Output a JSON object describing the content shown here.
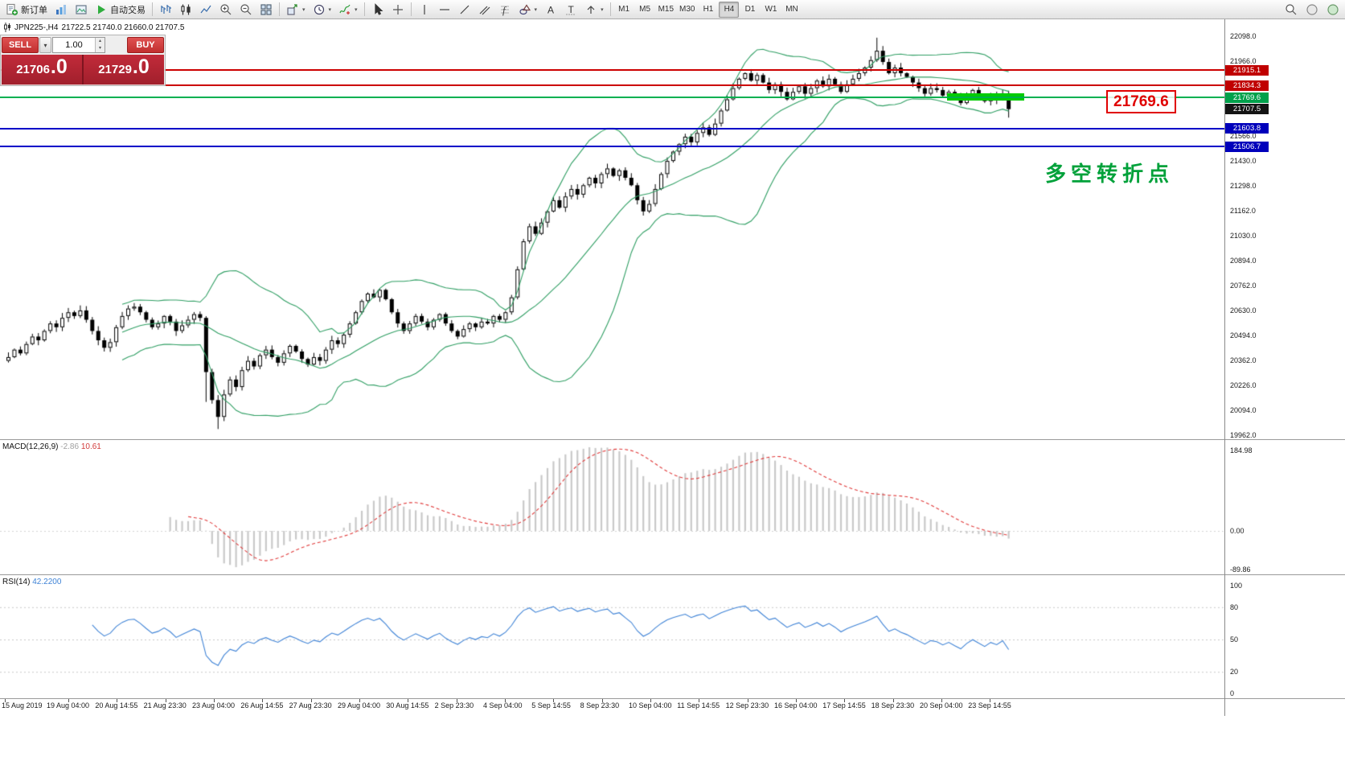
{
  "toolbar": {
    "new_order_label": "新订单",
    "autotrading_label": "自动交易",
    "timeframes": [
      "M1",
      "M5",
      "M15",
      "M30",
      "H1",
      "H4",
      "D1",
      "W1",
      "MN"
    ],
    "active_timeframe": "H4"
  },
  "symbol_header": {
    "title": "JPN225-,H4",
    "ohlc": "21722.5 21740.0 21660.0 21707.5"
  },
  "trade_panel": {
    "sell_label": "SELL",
    "buy_label": "BUY",
    "volume": "1.00",
    "sell_price_main": "21706",
    "sell_price_big": ".0",
    "buy_price_main": "21729",
    "buy_price_big": ".0"
  },
  "callout": {
    "text": "21769.6"
  },
  "annotation": {
    "text": "多空转折点"
  },
  "macd_panel": {
    "name": "MACD(12,26,9)",
    "value_main": "-2.86",
    "value_signal": "10.61",
    "scale": [
      "184.98",
      "0.00",
      "-89.86"
    ]
  },
  "rsi_panel": {
    "name": "RSI(14)",
    "value": "42.2200",
    "scale": [
      "100",
      "80",
      "50",
      "20",
      "0"
    ],
    "levels": [
      80,
      50,
      20
    ]
  },
  "colors": {
    "band": "#2f9e63",
    "level_red": "#cc0000",
    "level_green": "#00b050",
    "level_blue": "#0000c8",
    "macd_hist": "#c9c9c9",
    "macd_signal": "#e03a3a",
    "rsi_line": "#3f83d6",
    "support_zone": "#00cc00",
    "annotation_green": "#00a13a"
  },
  "price_axis": {
    "labels": [
      "22098.0",
      "21966.0",
      "21834.0",
      "21702.0",
      "21566.0",
      "21430.0",
      "21298.0",
      "21162.0",
      "21030.0",
      "20894.0",
      "20762.0",
      "20630.0",
      "20494.0",
      "20362.0",
      "20226.0",
      "20094.0",
      "19962.0"
    ]
  },
  "time_axis": {
    "labels": [
      "15 Aug 2019",
      "19 Aug 04:00",
      "20 Aug 14:55",
      "21 Aug 23:30",
      "23 Aug 04:00",
      "26 Aug 14:55",
      "27 Aug 23:30",
      "29 Aug 04:00",
      "30 Aug 14:55",
      "2 Sep 23:30",
      "4 Sep 04:00",
      "5 Sep 14:55",
      "8 Sep 23:30",
      "10 Sep 04:00",
      "11 Sep 14:55",
      "12 Sep 23:30",
      "16 Sep 04:00",
      "17 Sep 14:55",
      "18 Sep 23:30",
      "20 Sep 04:00",
      "23 Sep 14:55"
    ]
  },
  "chart_data": {
    "type": "candlestick",
    "symbol": "JPN225-",
    "timeframe": "H4",
    "axis_top_price": 22098.0,
    "axis_bottom_price": 19962.0,
    "levels": [
      {
        "label": "21915.1",
        "price": 21915.1,
        "color_key": "level_red",
        "marker_bg": "#c00000",
        "thickness": 2
      },
      {
        "label": "21834.3",
        "price": 21834.3,
        "color_key": "level_red",
        "marker_bg": "#c00000",
        "thickness": 2
      },
      {
        "label": "21769.6",
        "price": 21769.6,
        "color_key": "level_green",
        "marker_bg": "#00a14b",
        "thickness": 2
      },
      {
        "label": "21603.8",
        "price": 21603.8,
        "color_key": "level_blue",
        "marker_bg": "#0000bb",
        "thickness": 2
      },
      {
        "label": "21506.7",
        "price": 21506.7,
        "color_key": "level_blue",
        "marker_bg": "#0000bb",
        "thickness": 2
      }
    ],
    "current_price": {
      "label": "21707.5",
      "price": 21707.5,
      "bg": "#141414"
    },
    "support_zone": {
      "price": 21769.6
    },
    "indicators": [
      {
        "type": "bollinger",
        "period": 20,
        "deviation": 2
      },
      {
        "type": "macd",
        "fast": 12,
        "slow": 26,
        "signal": 9
      },
      {
        "type": "rsi",
        "period": 14
      }
    ],
    "closes": [
      20380,
      20420,
      20400,
      20450,
      20490,
      20470,
      20520,
      20560,
      20540,
      20590,
      20620,
      20600,
      20630,
      20580,
      20520,
      20470,
      20430,
      20460,
      20540,
      20600,
      20640,
      20650,
      20620,
      20580,
      20540,
      20560,
      20600,
      20570,
      20520,
      20550,
      20580,
      20610,
      20590,
      20300,
      20150,
      20060,
      20180,
      20260,
      20220,
      20310,
      20360,
      20330,
      20390,
      20420,
      20380,
      20350,
      20400,
      20440,
      20410,
      20370,
      20340,
      20380,
      20360,
      20420,
      20470,
      20450,
      20500,
      20560,
      20620,
      20680,
      20720,
      20700,
      20740,
      20690,
      20620,
      20560,
      20520,
      20560,
      20600,
      20570,
      20540,
      20580,
      20610,
      20560,
      20520,
      20490,
      20530,
      20560,
      20540,
      20570,
      20560,
      20600,
      20580,
      20620,
      20700,
      20850,
      21000,
      21080,
      21040,
      21100,
      21160,
      21220,
      21180,
      21240,
      21280,
      21250,
      21300,
      21340,
      21310,
      21360,
      21390,
      21350,
      21380,
      21340,
      21300,
      21220,
      21160,
      21200,
      21280,
      21360,
      21430,
      21480,
      21520,
      21560,
      21530,
      21580,
      21610,
      21570,
      21630,
      21700,
      21760,
      21820,
      21870,
      21900,
      21860,
      21890,
      21850,
      21810,
      21840,
      21800,
      21760,
      21800,
      21830,
      21790,
      21820,
      21860,
      21830,
      21870,
      21840,
      21800,
      21840,
      21870,
      21900,
      21930,
      21970,
      22020,
      21960,
      21900,
      21930,
      21900,
      21880,
      21850,
      21820,
      21790,
      21820,
      21810,
      21780,
      21800,
      21770,
      21740,
      21780,
      21810,
      21780,
      21750,
      21780,
      21760,
      21790,
      21707.5
    ],
    "wick_overrides": {
      "33": {
        "low": 20140
      },
      "35": {
        "low": 19995
      },
      "145": {
        "high": 22090
      },
      "167": {
        "low": 21662
      }
    }
  }
}
